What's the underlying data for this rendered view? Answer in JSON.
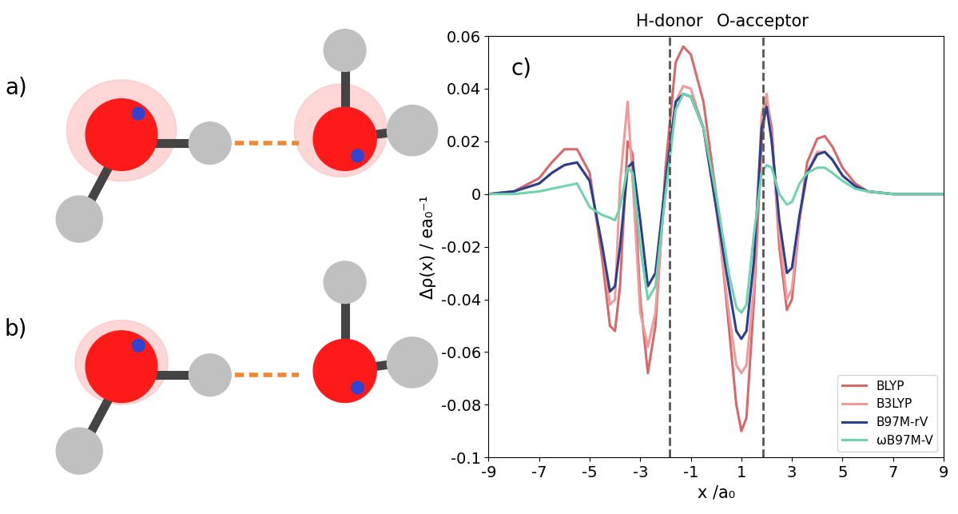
{
  "panel_labels": [
    "a)",
    "b)"
  ],
  "chart_data": {
    "type": "line",
    "panel_label": "c)",
    "x_label": "x /a₀",
    "y_label": "Δρ(x) / ea₀⁻¹",
    "annotations": [
      {
        "x": -1.85,
        "text": "H-donor"
      },
      {
        "x": 1.85,
        "text": "O-acceptor"
      }
    ],
    "x": [
      -9,
      -8,
      -7,
      -6.5,
      -6,
      -5.5,
      -5,
      -4.5,
      -4.2,
      -4,
      -3.8,
      -3.5,
      -3.3,
      -3,
      -2.7,
      -2.4,
      -2,
      -1.6,
      -1.3,
      -1,
      -0.5,
      0,
      0.5,
      0.8,
      1,
      1.2,
      1.5,
      1.8,
      2,
      2.2,
      2.5,
      2.8,
      3,
      3.3,
      3.6,
      4,
      4.3,
      4.6,
      5,
      5.5,
      6,
      7,
      8,
      9
    ],
    "series": [
      {
        "name": "BLYP",
        "color": "#d8686a",
        "values": [
          0,
          0.001,
          0.006,
          0.012,
          0.017,
          0.017,
          0.008,
          -0.025,
          -0.05,
          -0.052,
          -0.035,
          0.02,
          0.015,
          -0.04,
          -0.068,
          -0.05,
          0.01,
          0.05,
          0.056,
          0.053,
          0.035,
          0.0,
          -0.05,
          -0.08,
          -0.09,
          -0.085,
          -0.04,
          0.02,
          0.036,
          0.025,
          -0.02,
          -0.044,
          -0.04,
          -0.01,
          0.012,
          0.021,
          0.022,
          0.018,
          0.01,
          0.004,
          0.001,
          0,
          0,
          0
        ]
      },
      {
        "name": "B3LYP",
        "color": "#f2999a",
        "values": [
          0,
          0.001,
          0.004,
          0.008,
          0.011,
          0.012,
          0.005,
          -0.02,
          -0.042,
          -0.04,
          0.004,
          0.035,
          0.005,
          -0.045,
          -0.058,
          -0.045,
          0.005,
          0.035,
          0.041,
          0.04,
          0.025,
          -0.005,
          -0.045,
          -0.065,
          -0.068,
          -0.065,
          -0.035,
          0.03,
          0.038,
          0.02,
          -0.015,
          -0.04,
          -0.036,
          -0.01,
          0.008,
          0.016,
          0.016,
          0.013,
          0.007,
          0.003,
          0.001,
          0,
          0,
          0
        ]
      },
      {
        "name": "B97M-rV",
        "color": "#2b3f8f",
        "values": [
          0,
          0.001,
          0.004,
          0.008,
          0.011,
          0.012,
          0.005,
          -0.02,
          -0.037,
          -0.035,
          -0.02,
          0.01,
          0.012,
          -0.01,
          -0.035,
          -0.03,
          0.005,
          0.035,
          0.038,
          0.037,
          0.025,
          -0.005,
          -0.035,
          -0.052,
          -0.055,
          -0.052,
          -0.025,
          0.025,
          0.033,
          0.02,
          -0.01,
          -0.03,
          -0.028,
          -0.008,
          0.008,
          0.015,
          0.016,
          0.013,
          0.007,
          0.003,
          0.001,
          0,
          0,
          0
        ]
      },
      {
        "name": "ωB97M-V",
        "color": "#6fd3ae",
        "values": [
          0,
          0,
          0.001,
          0.002,
          0.003,
          0.004,
          -0.005,
          -0.008,
          -0.009,
          -0.01,
          -0.005,
          0.01,
          0.008,
          -0.02,
          -0.04,
          -0.035,
          0.0,
          0.032,
          0.038,
          0.037,
          0.025,
          0.0,
          -0.03,
          -0.043,
          -0.045,
          -0.042,
          -0.015,
          0.008,
          0.011,
          0.01,
          0.0,
          -0.004,
          -0.003,
          0.004,
          0.008,
          0.01,
          0.01,
          0.008,
          0.005,
          0.002,
          0.001,
          0,
          0,
          0
        ]
      }
    ],
    "xlim": [
      -9,
      9
    ],
    "xticks": [
      -9,
      -7,
      -5,
      -3,
      -1,
      1,
      3,
      5,
      7,
      9
    ],
    "ylim": [
      -0.1,
      0.06
    ],
    "yticks": [
      -0.1,
      -0.08,
      -0.06,
      -0.04,
      -0.02,
      0,
      0.02,
      0.04,
      0.06
    ],
    "legend": "lower right",
    "grid": false
  }
}
